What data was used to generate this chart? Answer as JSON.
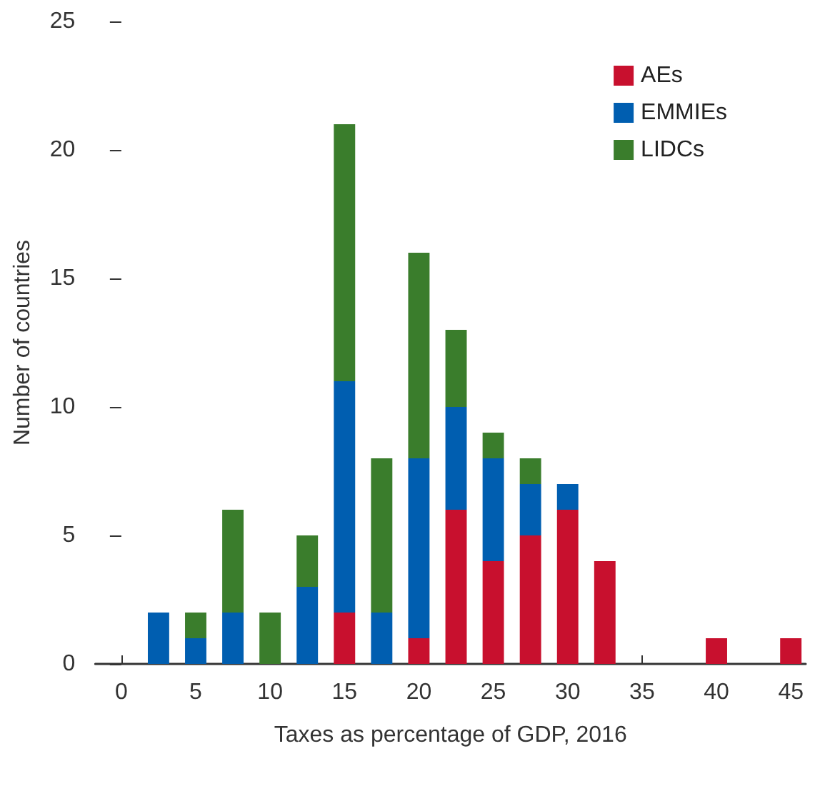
{
  "chart_data": {
    "type": "bar",
    "stacked": true,
    "xlabel": "Taxes as percentage of GDP, 2016",
    "ylabel": "Number of countries",
    "x": [
      0,
      2.5,
      5,
      7.5,
      10,
      12.5,
      15,
      17.5,
      20,
      22.5,
      25,
      27.5,
      30,
      32.5,
      35,
      37.5,
      40,
      42.5,
      45
    ],
    "series": [
      {
        "name": "AEs",
        "color": "#c8102e",
        "values": [
          0,
          0,
          0,
          0,
          0,
          0,
          2,
          0,
          1,
          6,
          4,
          5,
          6,
          4,
          0,
          0,
          1,
          0,
          1
        ]
      },
      {
        "name": "EMMIEs",
        "color": "#005eb0",
        "values": [
          0,
          2,
          1,
          2,
          0,
          3,
          9,
          2,
          7,
          4,
          4,
          2,
          1,
          0,
          0,
          0,
          0,
          0,
          0
        ]
      },
      {
        "name": "LIDCs",
        "color": "#3a7d2c",
        "values": [
          0,
          0,
          1,
          4,
          2,
          2,
          10,
          6,
          8,
          3,
          1,
          1,
          0,
          0,
          0,
          0,
          0,
          0,
          0
        ]
      }
    ],
    "xlim": [
      -1.75,
      46
    ],
    "xticks": [
      0,
      5,
      10,
      15,
      20,
      25,
      30,
      35,
      40,
      45
    ],
    "ylim": [
      0,
      25
    ],
    "yticks": [
      0,
      5,
      10,
      15,
      20,
      25
    ],
    "grid": false,
    "legend": "top right"
  }
}
